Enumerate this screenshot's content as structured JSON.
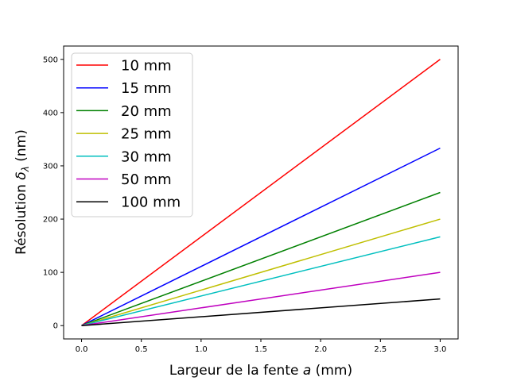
{
  "chart_data": {
    "type": "line",
    "xlabel_main": "Largeur de la fente ",
    "xlabel_var": "a",
    "xlabel_unit": " (mm)",
    "ylabel_main": "Résolution ",
    "ylabel_var": "δ",
    "ylabel_sub": "λ",
    "ylabel_unit": " (nm)",
    "xlim": [
      -0.15,
      3.15
    ],
    "ylim": [
      -25,
      525
    ],
    "x_ticks": [
      0.0,
      0.5,
      1.0,
      1.5,
      2.0,
      2.5,
      3.0
    ],
    "x_tick_labels": [
      "0.0",
      "0.5",
      "1.0",
      "1.5",
      "2.0",
      "2.5",
      "3.0"
    ],
    "y_ticks": [
      0,
      100,
      200,
      300,
      400,
      500
    ],
    "y_tick_labels": [
      "0",
      "100",
      "200",
      "300",
      "400",
      "500"
    ],
    "grid": false,
    "legend_position": "top-left",
    "series": [
      {
        "name": "10 mm",
        "color": "#ff0000",
        "x": [
          0.0,
          3.0
        ],
        "y": [
          0,
          500
        ]
      },
      {
        "name": "15 mm",
        "color": "#0000ff",
        "x": [
          0.0,
          3.0
        ],
        "y": [
          0,
          333.3
        ]
      },
      {
        "name": "20 mm",
        "color": "#008000",
        "x": [
          0.0,
          3.0
        ],
        "y": [
          0,
          250
        ]
      },
      {
        "name": "25 mm",
        "color": "#bfbf00",
        "x": [
          0.0,
          3.0
        ],
        "y": [
          0,
          200
        ]
      },
      {
        "name": "30 mm",
        "color": "#00bfbf",
        "x": [
          0.0,
          3.0
        ],
        "y": [
          0,
          166.7
        ]
      },
      {
        "name": "50 mm",
        "color": "#bf00bf",
        "x": [
          0.0,
          3.0
        ],
        "y": [
          0,
          100
        ]
      },
      {
        "name": "100 mm",
        "color": "#000000",
        "x": [
          0.0,
          3.0
        ],
        "y": [
          0,
          50
        ]
      }
    ]
  }
}
